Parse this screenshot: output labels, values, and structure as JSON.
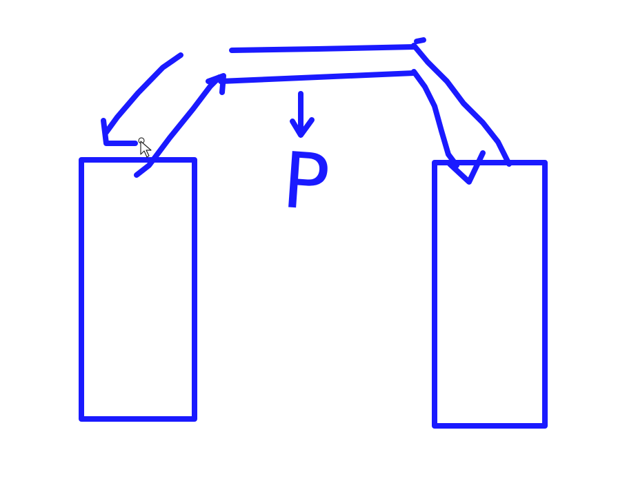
{
  "diagram": {
    "annotation_label": "P",
    "ink_color": "#1a1aff",
    "background_color": "#ffffff",
    "cursor_icon": "arrow-cursor-icon"
  }
}
